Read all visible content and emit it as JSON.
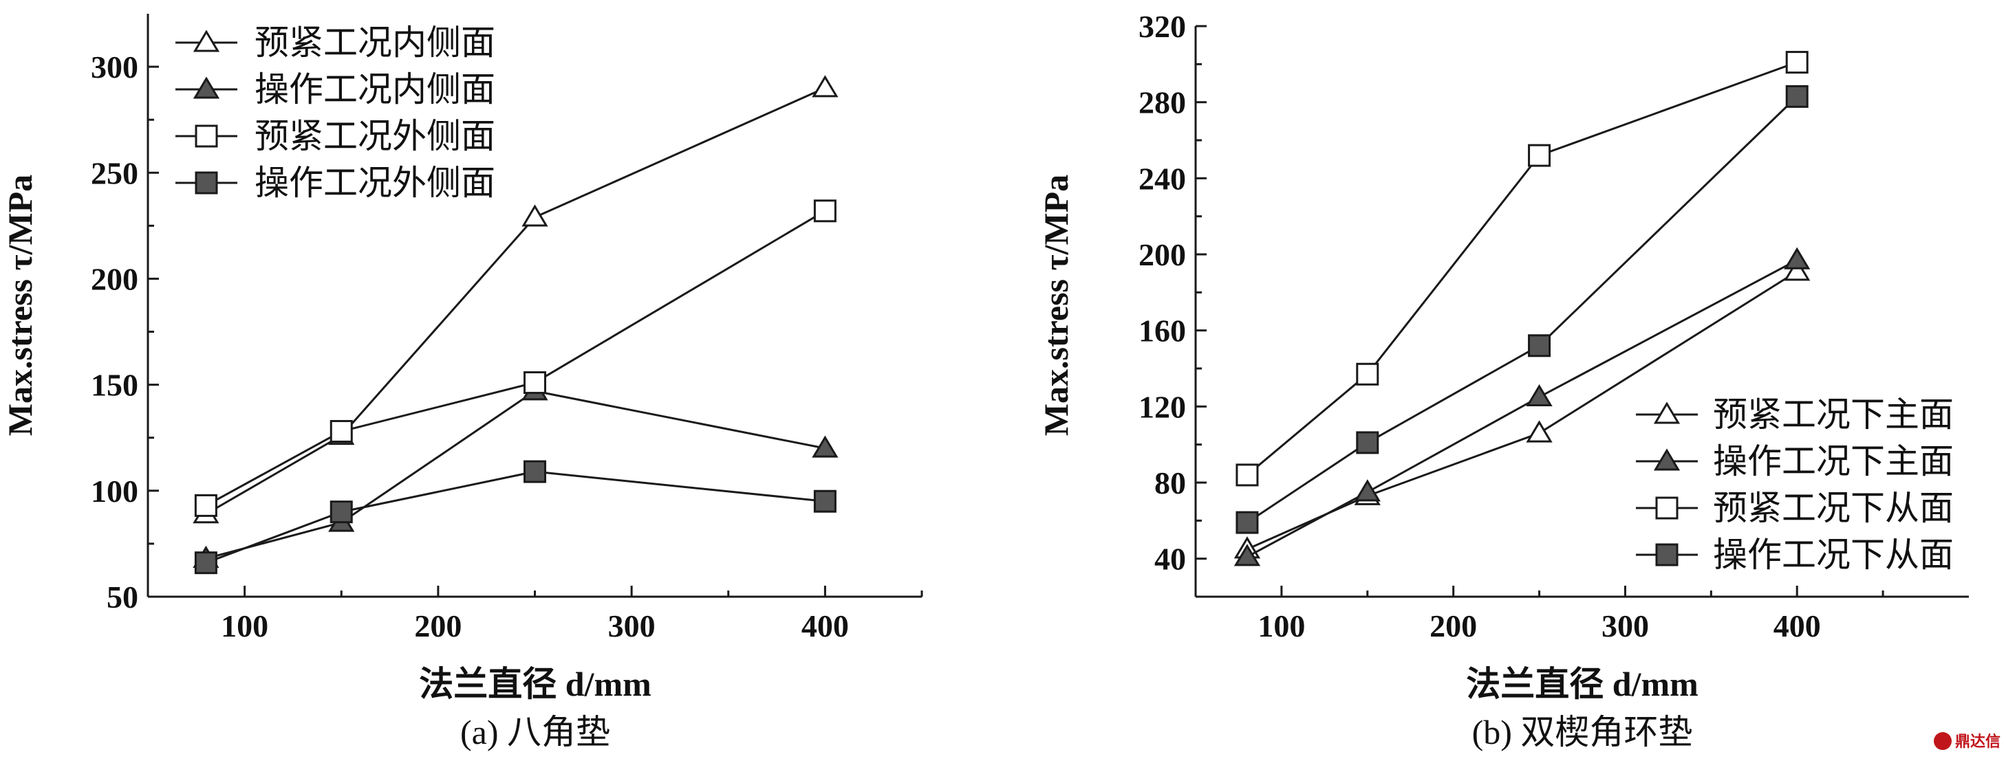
{
  "chart_data": [
    {
      "type": "line",
      "caption": "(a) 八角垫",
      "xlabel": "法兰直径 d/mm",
      "ylabel": "Max.stress τ/MPa",
      "xlim": [
        50,
        450
      ],
      "ylim": [
        50,
        325
      ],
      "xticks": [
        100,
        200,
        300,
        400
      ],
      "yticks": [
        50,
        100,
        150,
        200,
        250,
        300
      ],
      "x": [
        80,
        150,
        250,
        400
      ],
      "legend_position": "top-left",
      "series": [
        {
          "name": "预紧工况内侧面",
          "marker": "triangle-open",
          "values": [
            89,
            126,
            229,
            290
          ]
        },
        {
          "name": "操作工况内侧面",
          "marker": "triangle-filled",
          "values": [
            68,
            85,
            147,
            120
          ]
        },
        {
          "name": "预紧工况外侧面",
          "marker": "square-open",
          "values": [
            93,
            128,
            151,
            232
          ]
        },
        {
          "name": "操作工况外侧面",
          "marker": "square-filled",
          "values": [
            66,
            90,
            109,
            95
          ]
        }
      ]
    },
    {
      "type": "line",
      "caption": "(b) 双楔角环垫",
      "xlabel": "法兰直径 d/mm",
      "ylabel": "Max.stress τ/MPa",
      "xlim": [
        50,
        500
      ],
      "ylim": [
        20,
        320
      ],
      "xticks": [
        100,
        200,
        300,
        400
      ],
      "yticks": [
        40,
        80,
        120,
        160,
        200,
        240,
        280,
        320
      ],
      "x": [
        80,
        150,
        250,
        400
      ],
      "legend_position": "bottom-right",
      "series": [
        {
          "name": "预紧工况下主面",
          "marker": "triangle-open",
          "values": [
            45,
            73,
            106,
            191
          ]
        },
        {
          "name": "操作工况下主面",
          "marker": "triangle-filled",
          "values": [
            41,
            75,
            125,
            197
          ]
        },
        {
          "name": "预紧工况下从面",
          "marker": "square-open",
          "values": [
            84,
            137,
            252,
            301
          ]
        },
        {
          "name": "操作工况下从面",
          "marker": "square-filled",
          "values": [
            59,
            101,
            152,
            283
          ]
        }
      ]
    }
  ],
  "watermark": "鼎达信",
  "colors": {
    "line": "#1a1a1a",
    "marker_fill": "#555555",
    "marker_open": "#ffffff",
    "watermark": "#c0161b"
  }
}
